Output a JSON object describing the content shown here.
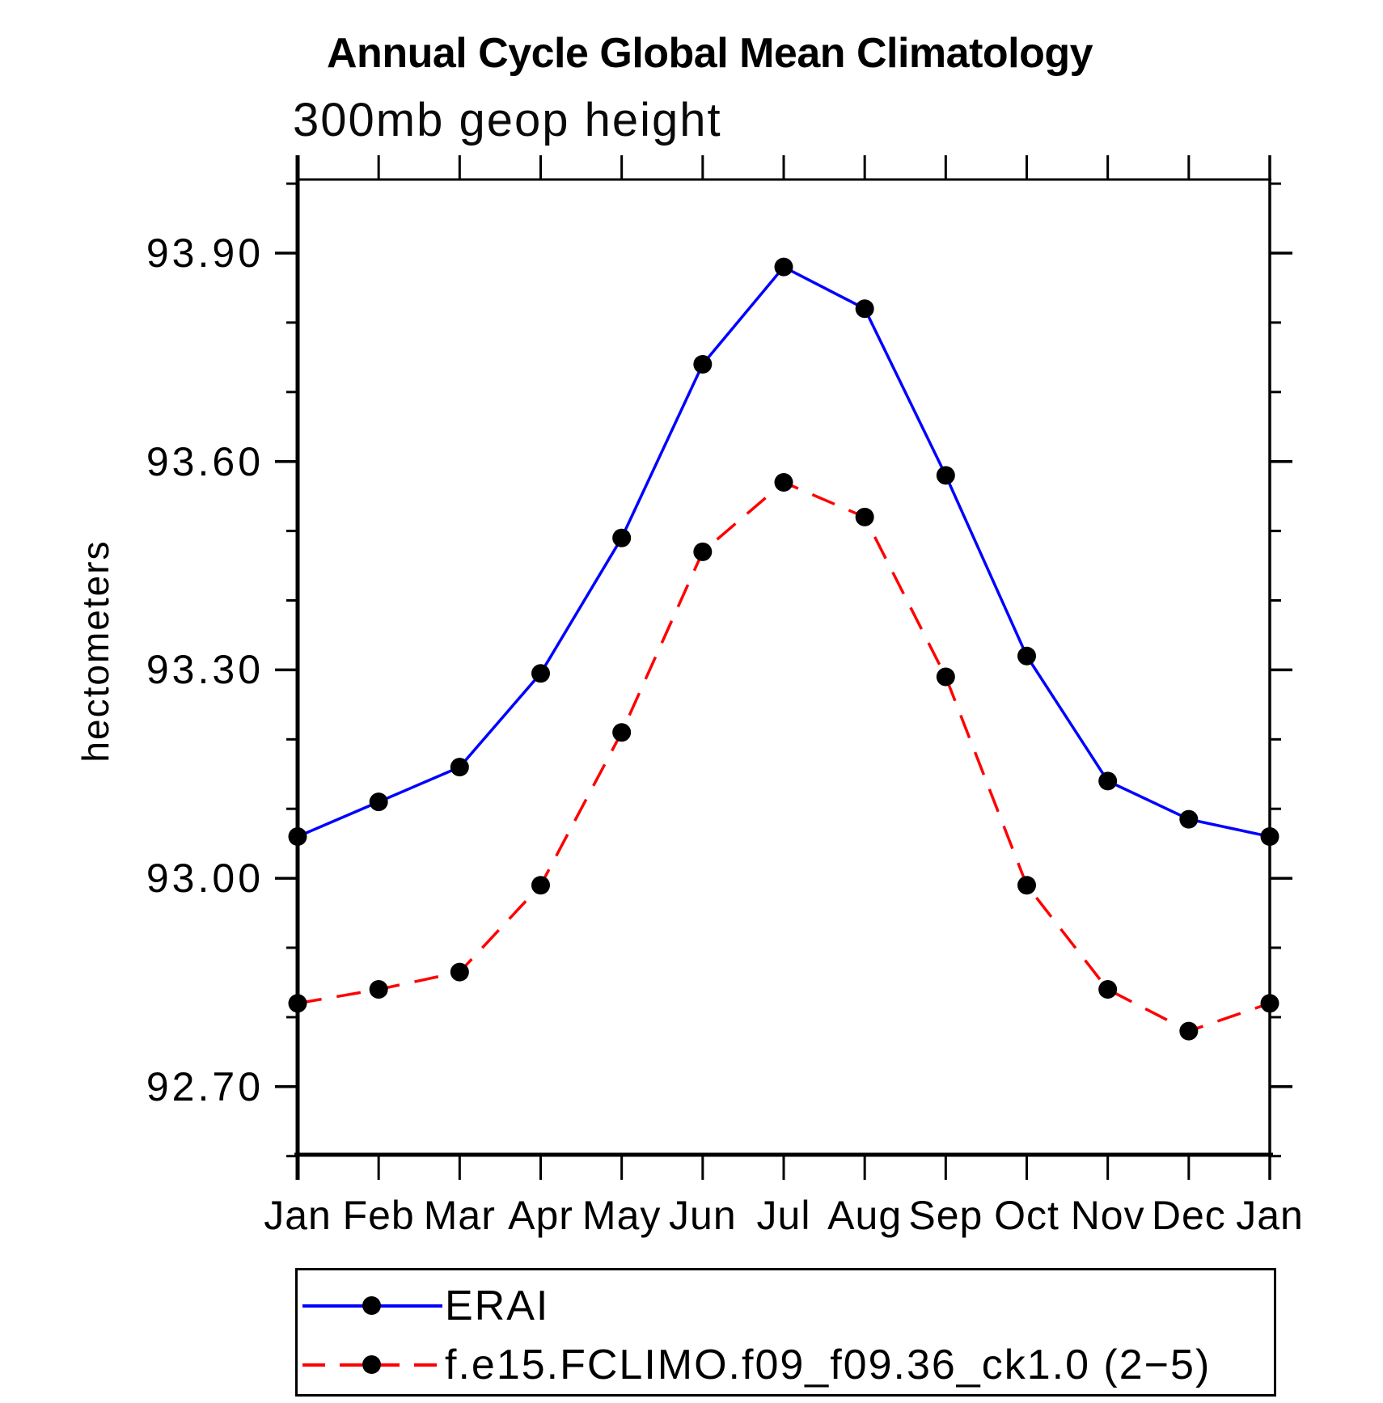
{
  "header": {
    "title": "Annual Cycle Global Mean Climatology",
    "subtitle": "300mb geop height"
  },
  "chart_data": {
    "type": "line",
    "title": "Annual Cycle Global Mean Climatology",
    "subtitle": "300mb geop height",
    "xlabel": "",
    "ylabel": "hectometers",
    "categories": [
      "Jan",
      "Feb",
      "Mar",
      "Apr",
      "May",
      "Jun",
      "Jul",
      "Aug",
      "Sep",
      "Oct",
      "Nov",
      "Dec",
      "Jan"
    ],
    "series": [
      {
        "name": "ERAI",
        "color": "#0000ff",
        "line_style": "solid",
        "marker": "filled-circle",
        "marker_color": "#000000",
        "values": [
          93.06,
          93.11,
          93.16,
          93.295,
          93.49,
          93.74,
          93.88,
          93.82,
          93.58,
          93.32,
          93.14,
          93.085,
          93.06
        ]
      },
      {
        "name": "f.e15.FCLIMO.f09_f09.36_ck1.0 (2−5)",
        "color": "#ff0000",
        "line_style": "dashed",
        "marker": "filled-circle",
        "marker_color": "#000000",
        "values": [
          92.82,
          92.84,
          92.865,
          92.99,
          93.21,
          93.47,
          93.57,
          93.52,
          93.29,
          92.99,
          92.84,
          92.78,
          92.82
        ]
      }
    ],
    "ylim": [
      92.6,
      94.01
    ],
    "y_major_ticks": [
      93.9,
      93.6,
      93.3,
      93.0,
      92.7
    ],
    "y_major_tick_labels": [
      "93.90",
      "93.60",
      "93.30",
      "93.00",
      "92.70"
    ],
    "y_minor_ticks": [
      94.0,
      93.8,
      93.7,
      93.5,
      93.4,
      93.2,
      93.1,
      92.9,
      92.8,
      92.6
    ],
    "grid": false,
    "legend_position": "bottom"
  },
  "legend": {
    "items": [
      {
        "label": "ERAI",
        "color": "#0000ff",
        "style": "solid"
      },
      {
        "label": "f.e15.FCLIMO.f09_f09.36_ck1.0 (2−5)",
        "color": "#ff0000",
        "style": "dashed"
      }
    ]
  },
  "colors": {
    "axis": "#000000",
    "series1": "#0000ff",
    "series2": "#ff0000",
    "marker": "#000000",
    "background": "#ffffff"
  }
}
